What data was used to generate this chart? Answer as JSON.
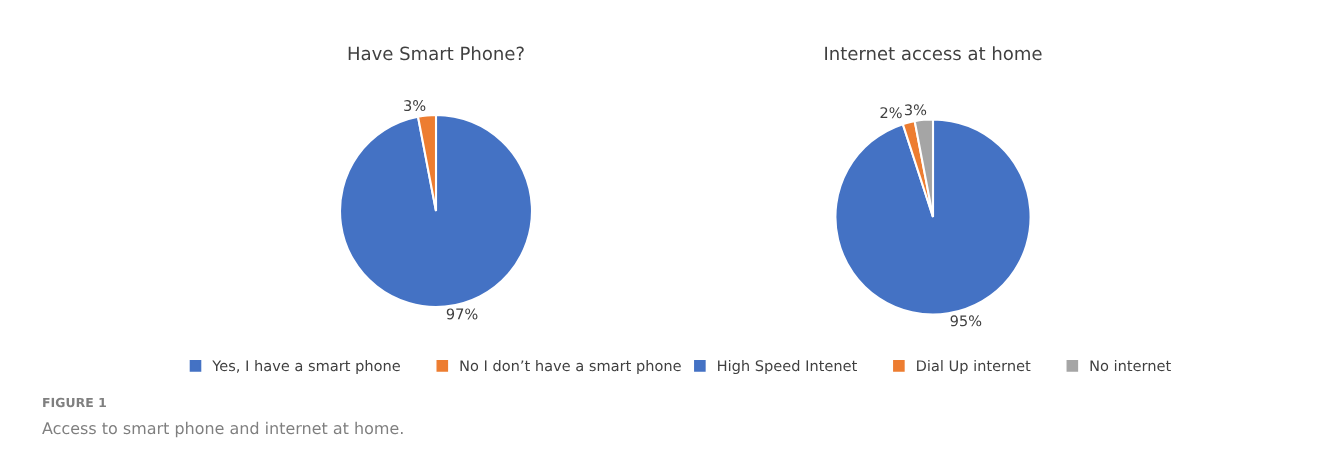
{
  "chart_data": [
    {
      "type": "pie",
      "title": "Have Smart Phone?",
      "categories": [
        "Yes, I have a smart phone",
        "No I don’t have a smart phone"
      ],
      "values": [
        97,
        3
      ],
      "colors": [
        "#4472c4",
        "#ed7d31"
      ],
      "value_labels": [
        "97%",
        "3%"
      ],
      "legend": "bottom",
      "annotations": [
        "FIGURE 1",
        "Access to smart phone and internet at home."
      ]
    },
    {
      "type": "pie",
      "title": "Internet access at home",
      "categories": [
        "High Speed Intenet",
        "Dial Up internet",
        "No internet"
      ],
      "values": [
        95,
        2,
        3
      ],
      "colors": [
        "#4472c4",
        "#ed7d31",
        "#a5a5a5"
      ],
      "value_labels": [
        "95%",
        "2%",
        "3%"
      ],
      "legend": "bottom"
    }
  ]
}
